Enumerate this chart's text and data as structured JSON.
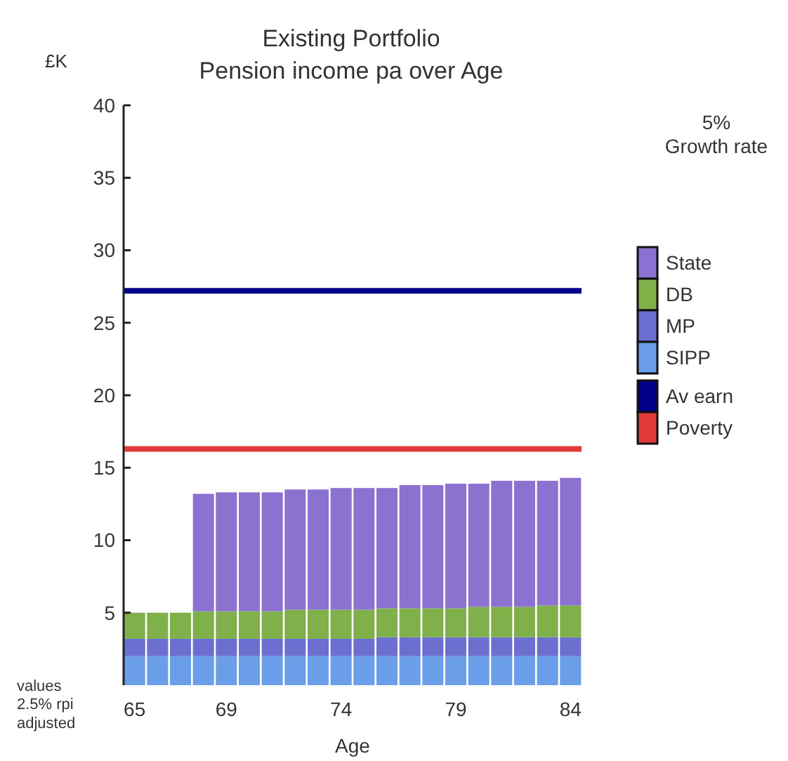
{
  "chart_data": {
    "type": "bar",
    "stacked": true,
    "title": "Existing Portfolio",
    "subtitle": "Pension income pa over Age",
    "ylabel": "£K",
    "xlabel": "Age",
    "categories": [
      "65",
      null,
      null,
      null,
      "69",
      null,
      null,
      null,
      null,
      "74",
      null,
      null,
      null,
      null,
      "79",
      null,
      null,
      null,
      null,
      "84"
    ],
    "series": [
      {
        "name": "SIPP",
        "color": "#6a9ee8",
        "values": [
          2,
          2,
          2,
          2,
          2,
          2,
          2,
          2,
          2,
          2,
          2,
          2,
          2,
          2,
          2,
          2,
          2,
          2,
          2,
          2
        ]
      },
      {
        "name": "MP",
        "color": "#6a6fd0",
        "values": [
          1.2,
          1.2,
          1.2,
          1.2,
          1.2,
          1.2,
          1.2,
          1.2,
          1.2,
          1.2,
          1.2,
          1.3,
          1.3,
          1.3,
          1.3,
          1.3,
          1.3,
          1.3,
          1.3,
          1.3
        ]
      },
      {
        "name": "DB",
        "color": "#7fb04a",
        "values": [
          1.8,
          1.8,
          1.8,
          1.9,
          1.9,
          1.9,
          1.9,
          2,
          2,
          2,
          2,
          2,
          2,
          2,
          2,
          2.1,
          2.1,
          2.1,
          2.2,
          2.2
        ]
      },
      {
        "name": "State",
        "color": "#8b72d0",
        "values": [
          0,
          0,
          0,
          8.1,
          8.2,
          8.2,
          8.2,
          8.3,
          8.3,
          8.4,
          8.4,
          8.3,
          8.5,
          8.5,
          8.6,
          8.5,
          8.7,
          8.7,
          8.6,
          8.8
        ]
      }
    ],
    "ylim": [
      0,
      40
    ],
    "yticks": [
      5,
      10,
      15,
      20,
      25,
      30,
      35,
      40
    ],
    "ref_lines": [
      {
        "axis": "y",
        "value": 27.2,
        "label": "Av earn",
        "color": "#00008b"
      },
      {
        "axis": "y",
        "value": 16.3,
        "label": "Poverty",
        "color": "#e03a3a"
      }
    ],
    "legend": "right",
    "annotations": [
      "5%\nGrowth rate",
      "values\n2.5% rpi\nadjusted"
    ]
  }
}
